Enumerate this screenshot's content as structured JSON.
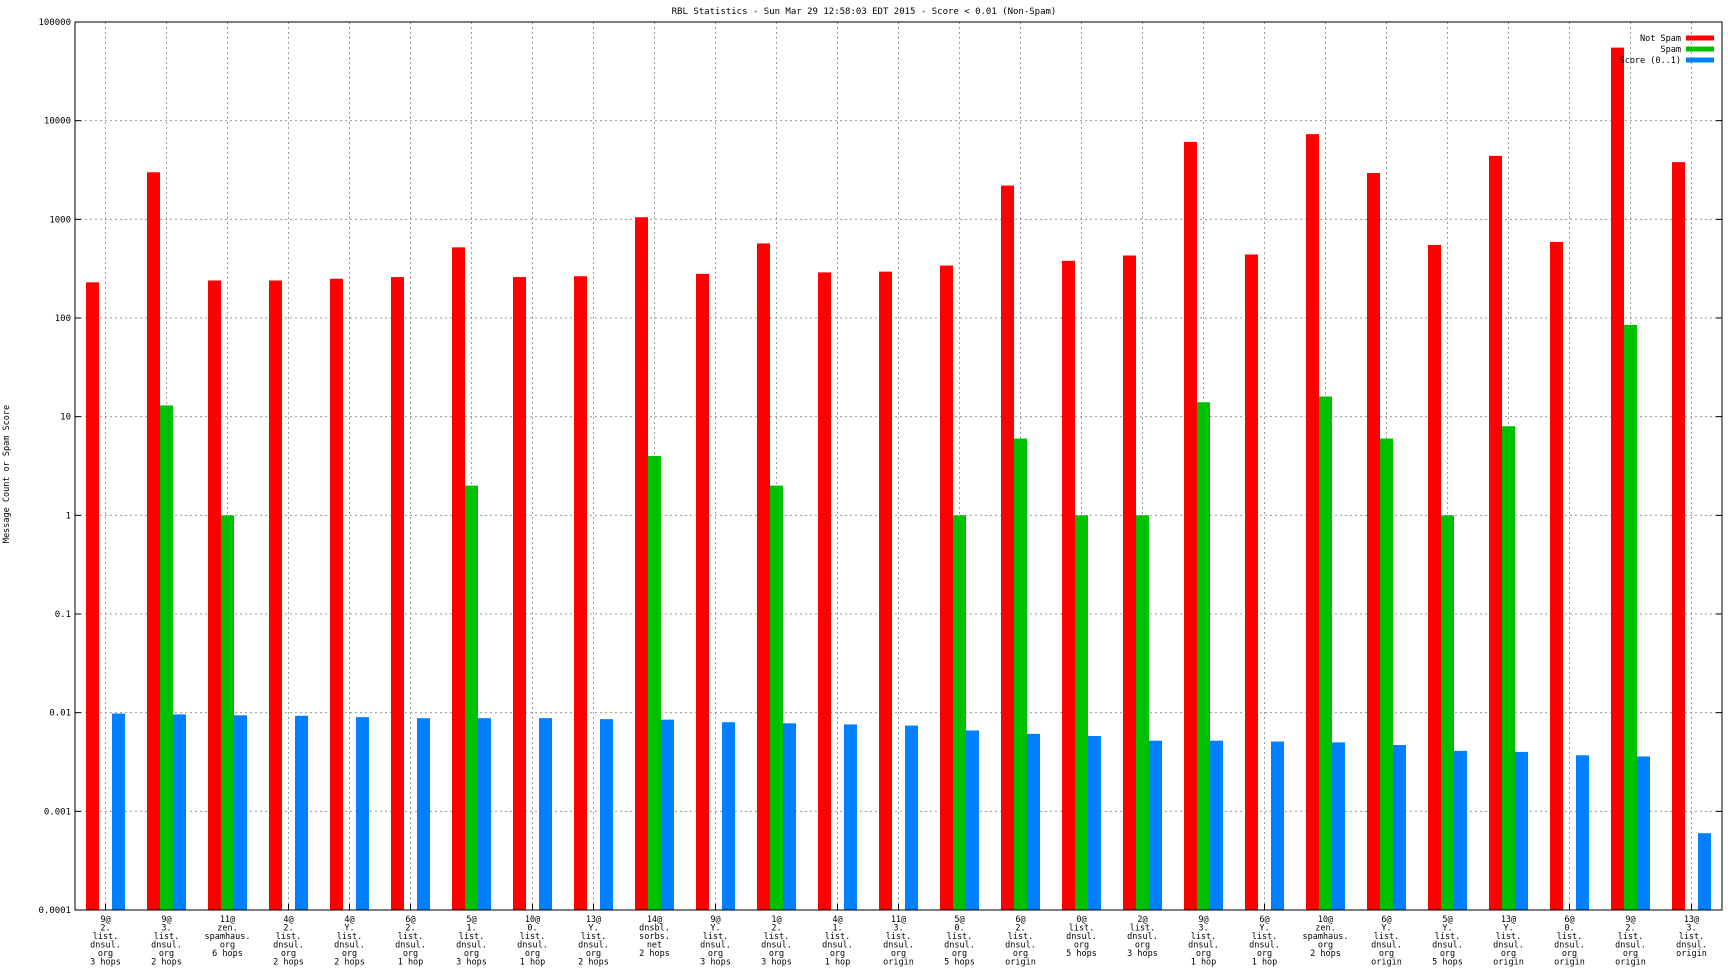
{
  "chart_data": {
    "type": "bar",
    "title": "RBL Statistics - Sun Mar 29 12:58:03 EDT 2015 - Score < 0.01 (Non-Spam)",
    "xlabel": "",
    "ylabel": "Message Count or Spam Score",
    "yscale": "log",
    "ylim": [
      0.0001,
      100000
    ],
    "yticks": [
      "100000",
      "10000",
      "1000",
      "100",
      "10",
      "1",
      "0.1",
      "0.01",
      "0.001",
      "0.0001"
    ],
    "grid": true,
    "legend_position": "top-right",
    "categories": [
      [
        "9@",
        "2.",
        "list.",
        "dnsul.",
        "org",
        "3 hops"
      ],
      [
        "9@",
        "3.",
        "list.",
        "dnsul.",
        "org",
        "2 hops"
      ],
      [
        "11@",
        "zen.",
        "spamhaus.",
        "org",
        "6 hops"
      ],
      [
        "4@",
        "2.",
        "list.",
        "dnsul.",
        "org",
        "2 hops"
      ],
      [
        "4@",
        "Y.",
        "list.",
        "dnsul.",
        "org",
        "2 hops"
      ],
      [
        "6@",
        "2.",
        "list.",
        "dnsul.",
        "org",
        "1 hop"
      ],
      [
        "5@",
        "1.",
        "list.",
        "dnsul.",
        "org",
        "3 hops"
      ],
      [
        "10@",
        "0.",
        "list.",
        "dnsul.",
        "org",
        "1 hop"
      ],
      [
        "13@",
        "Y.",
        "list.",
        "dnsul.",
        "org",
        "2 hops"
      ],
      [
        "14@",
        "dnsbl.",
        "sorbs.",
        "net",
        "2 hops"
      ],
      [
        "9@",
        "Y.",
        "list.",
        "dnsul.",
        "org",
        "3 hops"
      ],
      [
        "1@",
        "2.",
        "list.",
        "dnsul.",
        "org",
        "3 hops"
      ],
      [
        "4@",
        "1.",
        "list.",
        "dnsul.",
        "org",
        "1 hop"
      ],
      [
        "11@",
        "3.",
        "list.",
        "dnsul.",
        "org",
        "origin"
      ],
      [
        "5@",
        "0.",
        "list.",
        "dnsul.",
        "org",
        "5 hops"
      ],
      [
        "6@",
        "2.",
        "list.",
        "dnsul.",
        "org",
        "origin"
      ],
      [
        "0@",
        "list.",
        "dnsul.",
        "org",
        "5 hops"
      ],
      [
        "2@",
        "list.",
        "dnsul.",
        "org",
        "3 hops"
      ],
      [
        "9@",
        "3.",
        "list.",
        "dnsul.",
        "org",
        "1 hop"
      ],
      [
        "6@",
        "Y.",
        "list.",
        "dnsul.",
        "org",
        "1 hop"
      ],
      [
        "10@",
        "zen.",
        "spamhaus.",
        "org",
        "2 hops"
      ],
      [
        "6@",
        "Y.",
        "list.",
        "dnsul.",
        "org",
        "origin"
      ],
      [
        "5@",
        "Y.",
        "list.",
        "dnsul.",
        "org",
        "5 hops"
      ],
      [
        "13@",
        "Y.",
        "list.",
        "dnsul.",
        "org",
        "origin"
      ],
      [
        "6@",
        "0.",
        "list.",
        "dnsul.",
        "org",
        "origin"
      ],
      [
        "9@",
        "2.",
        "list.",
        "dnsul.",
        "org",
        "origin"
      ],
      [
        "13@",
        "3.",
        "list.",
        "dnsul.",
        "origin"
      ]
    ],
    "series": [
      {
        "name": "Not Spam",
        "color": "#ff0000",
        "values": [
          230,
          3000,
          240,
          240,
          250,
          260,
          520,
          260,
          265,
          1050,
          280,
          570,
          290,
          295,
          340,
          2200,
          380,
          430,
          6100,
          440,
          7300,
          2950,
          550,
          4400,
          590,
          55000,
          3800
        ]
      },
      {
        "name": "Spam",
        "color": "#00c000",
        "values": [
          null,
          13,
          1,
          null,
          null,
          null,
          2,
          null,
          null,
          4,
          null,
          2,
          null,
          null,
          1,
          6,
          1,
          1,
          14,
          null,
          16,
          6,
          1,
          8,
          null,
          85,
          null
        ]
      },
      {
        "name": "Score (0..1)",
        "color": "#0080ff",
        "values": [
          0.0098,
          0.0096,
          0.0094,
          0.0093,
          0.009,
          0.0088,
          0.0088,
          0.0088,
          0.0086,
          0.0085,
          0.008,
          0.0078,
          0.0076,
          0.0074,
          0.0066,
          0.0061,
          0.0058,
          0.0052,
          0.0052,
          0.0051,
          0.005,
          0.0047,
          0.0041,
          0.004,
          0.0037,
          0.0036,
          0.0006
        ]
      }
    ]
  }
}
